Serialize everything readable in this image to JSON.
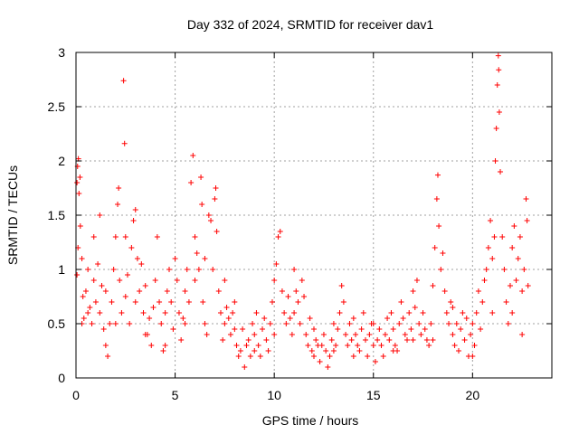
{
  "chart_data": {
    "type": "scatter",
    "title": "Day 332 of 2024, SRMTID for receiver dav1",
    "xlabel": "GPS time / hours",
    "ylabel": "SRMTID / TECUs",
    "xlim": [
      0,
      24
    ],
    "ylim": [
      0,
      3
    ],
    "xticks": [
      0,
      5,
      10,
      15,
      20
    ],
    "xtick_labels": [
      "0",
      "5",
      "10",
      "15",
      "20"
    ],
    "yticks": [
      0,
      0.5,
      1,
      1.5,
      2,
      2.5,
      3
    ],
    "ytick_labels": [
      "0",
      "0.5",
      "1",
      "1.5",
      "2",
      "2.5",
      "3"
    ],
    "grid": true,
    "marker": "+",
    "color": "#ff0000",
    "series": [
      {
        "name": "SRMTID",
        "points": [
          [
            0.05,
            1.8
          ],
          [
            0.08,
            1.95
          ],
          [
            0.12,
            2.02
          ],
          [
            0.15,
            1.7
          ],
          [
            0.2,
            1.85
          ],
          [
            0.22,
            1.4
          ],
          [
            0.1,
            1.2
          ],
          [
            0.05,
            0.95
          ],
          [
            0.3,
            1.1
          ],
          [
            0.35,
            0.75
          ],
          [
            0.4,
            0.55
          ],
          [
            0.5,
            0.8
          ],
          [
            0.6,
            1.0
          ],
          [
            0.7,
            0.65
          ],
          [
            0.8,
            0.5
          ],
          [
            0.9,
            0.9
          ],
          [
            1.0,
            0.7
          ],
          [
            1.1,
            1.05
          ],
          [
            1.2,
            0.6
          ],
          [
            1.3,
            0.85
          ],
          [
            1.4,
            0.45
          ],
          [
            1.5,
            0.3
          ],
          [
            1.6,
            0.2
          ],
          [
            1.7,
            0.5
          ],
          [
            1.8,
            0.7
          ],
          [
            1.9,
            1.0
          ],
          [
            2.0,
            1.3
          ],
          [
            2.1,
            1.6
          ],
          [
            2.15,
            1.75
          ],
          [
            2.2,
            0.9
          ],
          [
            2.3,
            0.6
          ],
          [
            2.4,
            2.74
          ],
          [
            2.45,
            2.16
          ],
          [
            2.5,
            0.75
          ],
          [
            2.6,
            0.95
          ],
          [
            2.7,
            0.5
          ],
          [
            2.8,
            1.2
          ],
          [
            2.9,
            1.45
          ],
          [
            3.0,
            1.55
          ],
          [
            3.1,
            1.1
          ],
          [
            3.2,
            0.8
          ],
          [
            3.3,
            1.05
          ],
          [
            3.4,
            0.6
          ],
          [
            3.5,
            0.85
          ],
          [
            3.6,
            0.4
          ],
          [
            3.7,
            0.55
          ],
          [
            3.8,
            0.3
          ],
          [
            3.9,
            0.65
          ],
          [
            4.0,
            0.9
          ],
          [
            4.1,
            1.3
          ],
          [
            4.2,
            0.7
          ],
          [
            4.3,
            0.5
          ],
          [
            4.4,
            0.25
          ],
          [
            4.5,
            0.6
          ],
          [
            4.6,
            0.8
          ],
          [
            4.7,
            1.0
          ],
          [
            4.8,
            0.7
          ],
          [
            4.9,
            0.45
          ],
          [
            5.0,
            1.1
          ],
          [
            5.1,
            0.9
          ],
          [
            5.2,
            0.6
          ],
          [
            5.3,
            0.35
          ],
          [
            5.4,
            0.55
          ],
          [
            5.5,
            0.8
          ],
          [
            5.6,
            1.0
          ],
          [
            5.7,
            0.7
          ],
          [
            5.8,
            1.8
          ],
          [
            5.9,
            2.05
          ],
          [
            6.0,
            1.3
          ],
          [
            6.1,
            1.15
          ],
          [
            6.2,
            1.0
          ],
          [
            6.3,
            1.85
          ],
          [
            6.35,
            1.6
          ],
          [
            6.4,
            0.7
          ],
          [
            6.5,
            0.5
          ],
          [
            6.6,
            0.4
          ],
          [
            6.7,
            1.5
          ],
          [
            6.8,
            1.45
          ],
          [
            6.9,
            1.0
          ],
          [
            7.0,
            1.65
          ],
          [
            7.05,
            1.75
          ],
          [
            7.1,
            1.35
          ],
          [
            7.2,
            0.8
          ],
          [
            7.3,
            0.6
          ],
          [
            7.4,
            0.35
          ],
          [
            7.5,
            0.5
          ],
          [
            7.6,
            0.65
          ],
          [
            7.7,
            0.55
          ],
          [
            7.8,
            0.4
          ],
          [
            7.9,
            0.6
          ],
          [
            8.0,
            0.7
          ],
          [
            8.1,
            0.3
          ],
          [
            8.2,
            0.2
          ],
          [
            8.3,
            0.25
          ],
          [
            8.4,
            0.45
          ],
          [
            8.5,
            0.1
          ],
          [
            8.6,
            0.3
          ],
          [
            8.7,
            0.35
          ],
          [
            8.8,
            0.2
          ],
          [
            8.9,
            0.5
          ],
          [
            9.0,
            0.4
          ],
          [
            9.1,
            0.6
          ],
          [
            9.2,
            0.3
          ],
          [
            9.3,
            0.2
          ],
          [
            9.4,
            0.45
          ],
          [
            9.5,
            0.55
          ],
          [
            9.6,
            0.35
          ],
          [
            9.7,
            0.25
          ],
          [
            9.8,
            0.5
          ],
          [
            9.9,
            0.7
          ],
          [
            10.0,
            0.9
          ],
          [
            10.1,
            1.05
          ],
          [
            10.2,
            1.3
          ],
          [
            10.3,
            1.35
          ],
          [
            10.4,
            0.8
          ],
          [
            10.5,
            0.6
          ],
          [
            10.6,
            0.5
          ],
          [
            10.7,
            0.75
          ],
          [
            10.8,
            0.55
          ],
          [
            10.9,
            0.4
          ],
          [
            11.0,
            0.6
          ],
          [
            11.1,
            0.8
          ],
          [
            11.2,
            0.7
          ],
          [
            11.3,
            0.5
          ],
          [
            11.4,
            0.9
          ],
          [
            11.5,
            0.75
          ],
          [
            11.6,
            0.4
          ],
          [
            11.7,
            0.3
          ],
          [
            11.8,
            0.55
          ],
          [
            11.9,
            0.25
          ],
          [
            12.0,
            0.2
          ],
          [
            12.1,
            0.35
          ],
          [
            12.2,
            0.3
          ],
          [
            12.3,
            0.15
          ],
          [
            12.4,
            0.3
          ],
          [
            12.5,
            0.4
          ],
          [
            12.6,
            0.25
          ],
          [
            12.7,
            0.1
          ],
          [
            12.8,
            0.2
          ],
          [
            12.9,
            0.35
          ],
          [
            13.0,
            0.5
          ],
          [
            13.1,
            0.3
          ],
          [
            13.2,
            0.45
          ],
          [
            13.3,
            0.6
          ],
          [
            13.4,
            0.85
          ],
          [
            13.5,
            0.7
          ],
          [
            13.6,
            0.4
          ],
          [
            13.7,
            0.3
          ],
          [
            13.8,
            0.5
          ],
          [
            13.9,
            0.35
          ],
          [
            14.0,
            0.55
          ],
          [
            14.1,
            0.4
          ],
          [
            14.2,
            0.3
          ],
          [
            14.3,
            0.25
          ],
          [
            14.4,
            0.45
          ],
          [
            14.5,
            0.6
          ],
          [
            14.6,
            0.35
          ],
          [
            14.7,
            0.2
          ],
          [
            14.8,
            0.4
          ],
          [
            14.9,
            0.5
          ],
          [
            15.0,
            0.3
          ],
          [
            15.1,
            0.15
          ],
          [
            15.2,
            0.35
          ],
          [
            15.3,
            0.45
          ],
          [
            15.4,
            0.3
          ],
          [
            15.5,
            0.2
          ],
          [
            15.6,
            0.4
          ],
          [
            15.7,
            0.55
          ],
          [
            15.8,
            0.35
          ],
          [
            15.9,
            0.6
          ],
          [
            16.0,
            0.45
          ],
          [
            16.1,
            0.3
          ],
          [
            16.2,
            0.25
          ],
          [
            16.3,
            0.5
          ],
          [
            16.4,
            0.7
          ],
          [
            16.5,
            0.55
          ],
          [
            16.6,
            0.4
          ],
          [
            16.7,
            0.35
          ],
          [
            16.8,
            0.6
          ],
          [
            16.9,
            0.45
          ],
          [
            17.0,
            0.8
          ],
          [
            17.1,
            0.65
          ],
          [
            17.2,
            0.9
          ],
          [
            17.3,
            0.5
          ],
          [
            17.4,
            0.4
          ],
          [
            17.5,
            0.6
          ],
          [
            17.6,
            0.45
          ],
          [
            17.7,
            0.35
          ],
          [
            17.8,
            0.3
          ],
          [
            17.9,
            0.5
          ],
          [
            18.0,
            0.85
          ],
          [
            18.1,
            1.2
          ],
          [
            18.2,
            1.65
          ],
          [
            18.25,
            1.87
          ],
          [
            18.3,
            1.4
          ],
          [
            18.4,
            1.0
          ],
          [
            18.5,
            1.15
          ],
          [
            18.6,
            0.8
          ],
          [
            18.7,
            0.6
          ],
          [
            18.8,
            0.5
          ],
          [
            18.9,
            0.7
          ],
          [
            19.0,
            0.4
          ],
          [
            19.1,
            0.3
          ],
          [
            19.2,
            0.5
          ],
          [
            19.3,
            0.25
          ],
          [
            19.4,
            0.45
          ],
          [
            19.5,
            0.6
          ],
          [
            19.6,
            0.35
          ],
          [
            19.7,
            0.55
          ],
          [
            19.8,
            0.2
          ],
          [
            19.9,
            0.4
          ],
          [
            20.0,
            0.5
          ],
          [
            20.1,
            0.3
          ],
          [
            20.2,
            0.6
          ],
          [
            20.3,
            0.8
          ],
          [
            20.4,
            0.45
          ],
          [
            20.5,
            0.7
          ],
          [
            20.6,
            0.9
          ],
          [
            20.7,
            1.0
          ],
          [
            20.8,
            1.2
          ],
          [
            20.9,
            1.45
          ],
          [
            21.0,
            1.1
          ],
          [
            21.1,
            1.3
          ],
          [
            21.15,
            2.0
          ],
          [
            21.2,
            2.3
          ],
          [
            21.25,
            2.7
          ],
          [
            21.3,
            2.97
          ],
          [
            21.32,
            2.84
          ],
          [
            21.35,
            2.45
          ],
          [
            21.4,
            1.9
          ],
          [
            21.5,
            1.3
          ],
          [
            21.6,
            1.0
          ],
          [
            21.7,
            0.7
          ],
          [
            21.8,
            0.5
          ],
          [
            21.9,
            0.85
          ],
          [
            22.0,
            1.2
          ],
          [
            22.1,
            1.4
          ],
          [
            22.2,
            0.9
          ],
          [
            22.3,
            1.1
          ],
          [
            22.4,
            1.3
          ],
          [
            22.5,
            0.8
          ],
          [
            22.6,
            1.0
          ],
          [
            22.7,
            1.65
          ],
          [
            22.75,
            1.45
          ],
          [
            22.8,
            0.85
          ],
          [
            0.3,
            0.5
          ],
          [
            0.6,
            0.6
          ],
          [
            0.9,
            1.3
          ],
          [
            1.2,
            1.5
          ],
          [
            1.5,
            0.8
          ],
          [
            2.0,
            0.5
          ],
          [
            2.5,
            1.3
          ],
          [
            3.0,
            0.7
          ],
          [
            3.5,
            0.4
          ],
          [
            4.5,
            0.3
          ],
          [
            5.5,
            0.5
          ],
          [
            6.0,
            0.9
          ],
          [
            6.5,
            1.1
          ],
          [
            7.5,
            0.9
          ],
          [
            8.0,
            0.45
          ],
          [
            9.0,
            0.25
          ],
          [
            10.0,
            0.4
          ],
          [
            11.0,
            1.0
          ],
          [
            12.0,
            0.45
          ],
          [
            13.0,
            0.25
          ],
          [
            14.0,
            0.2
          ],
          [
            15.0,
            0.5
          ],
          [
            16.0,
            0.25
          ],
          [
            17.0,
            0.35
          ],
          [
            18.0,
            0.35
          ],
          [
            19.0,
            0.65
          ],
          [
            20.0,
            0.2
          ],
          [
            21.0,
            0.6
          ],
          [
            22.0,
            0.6
          ],
          [
            22.5,
            0.4
          ]
        ]
      }
    ]
  }
}
